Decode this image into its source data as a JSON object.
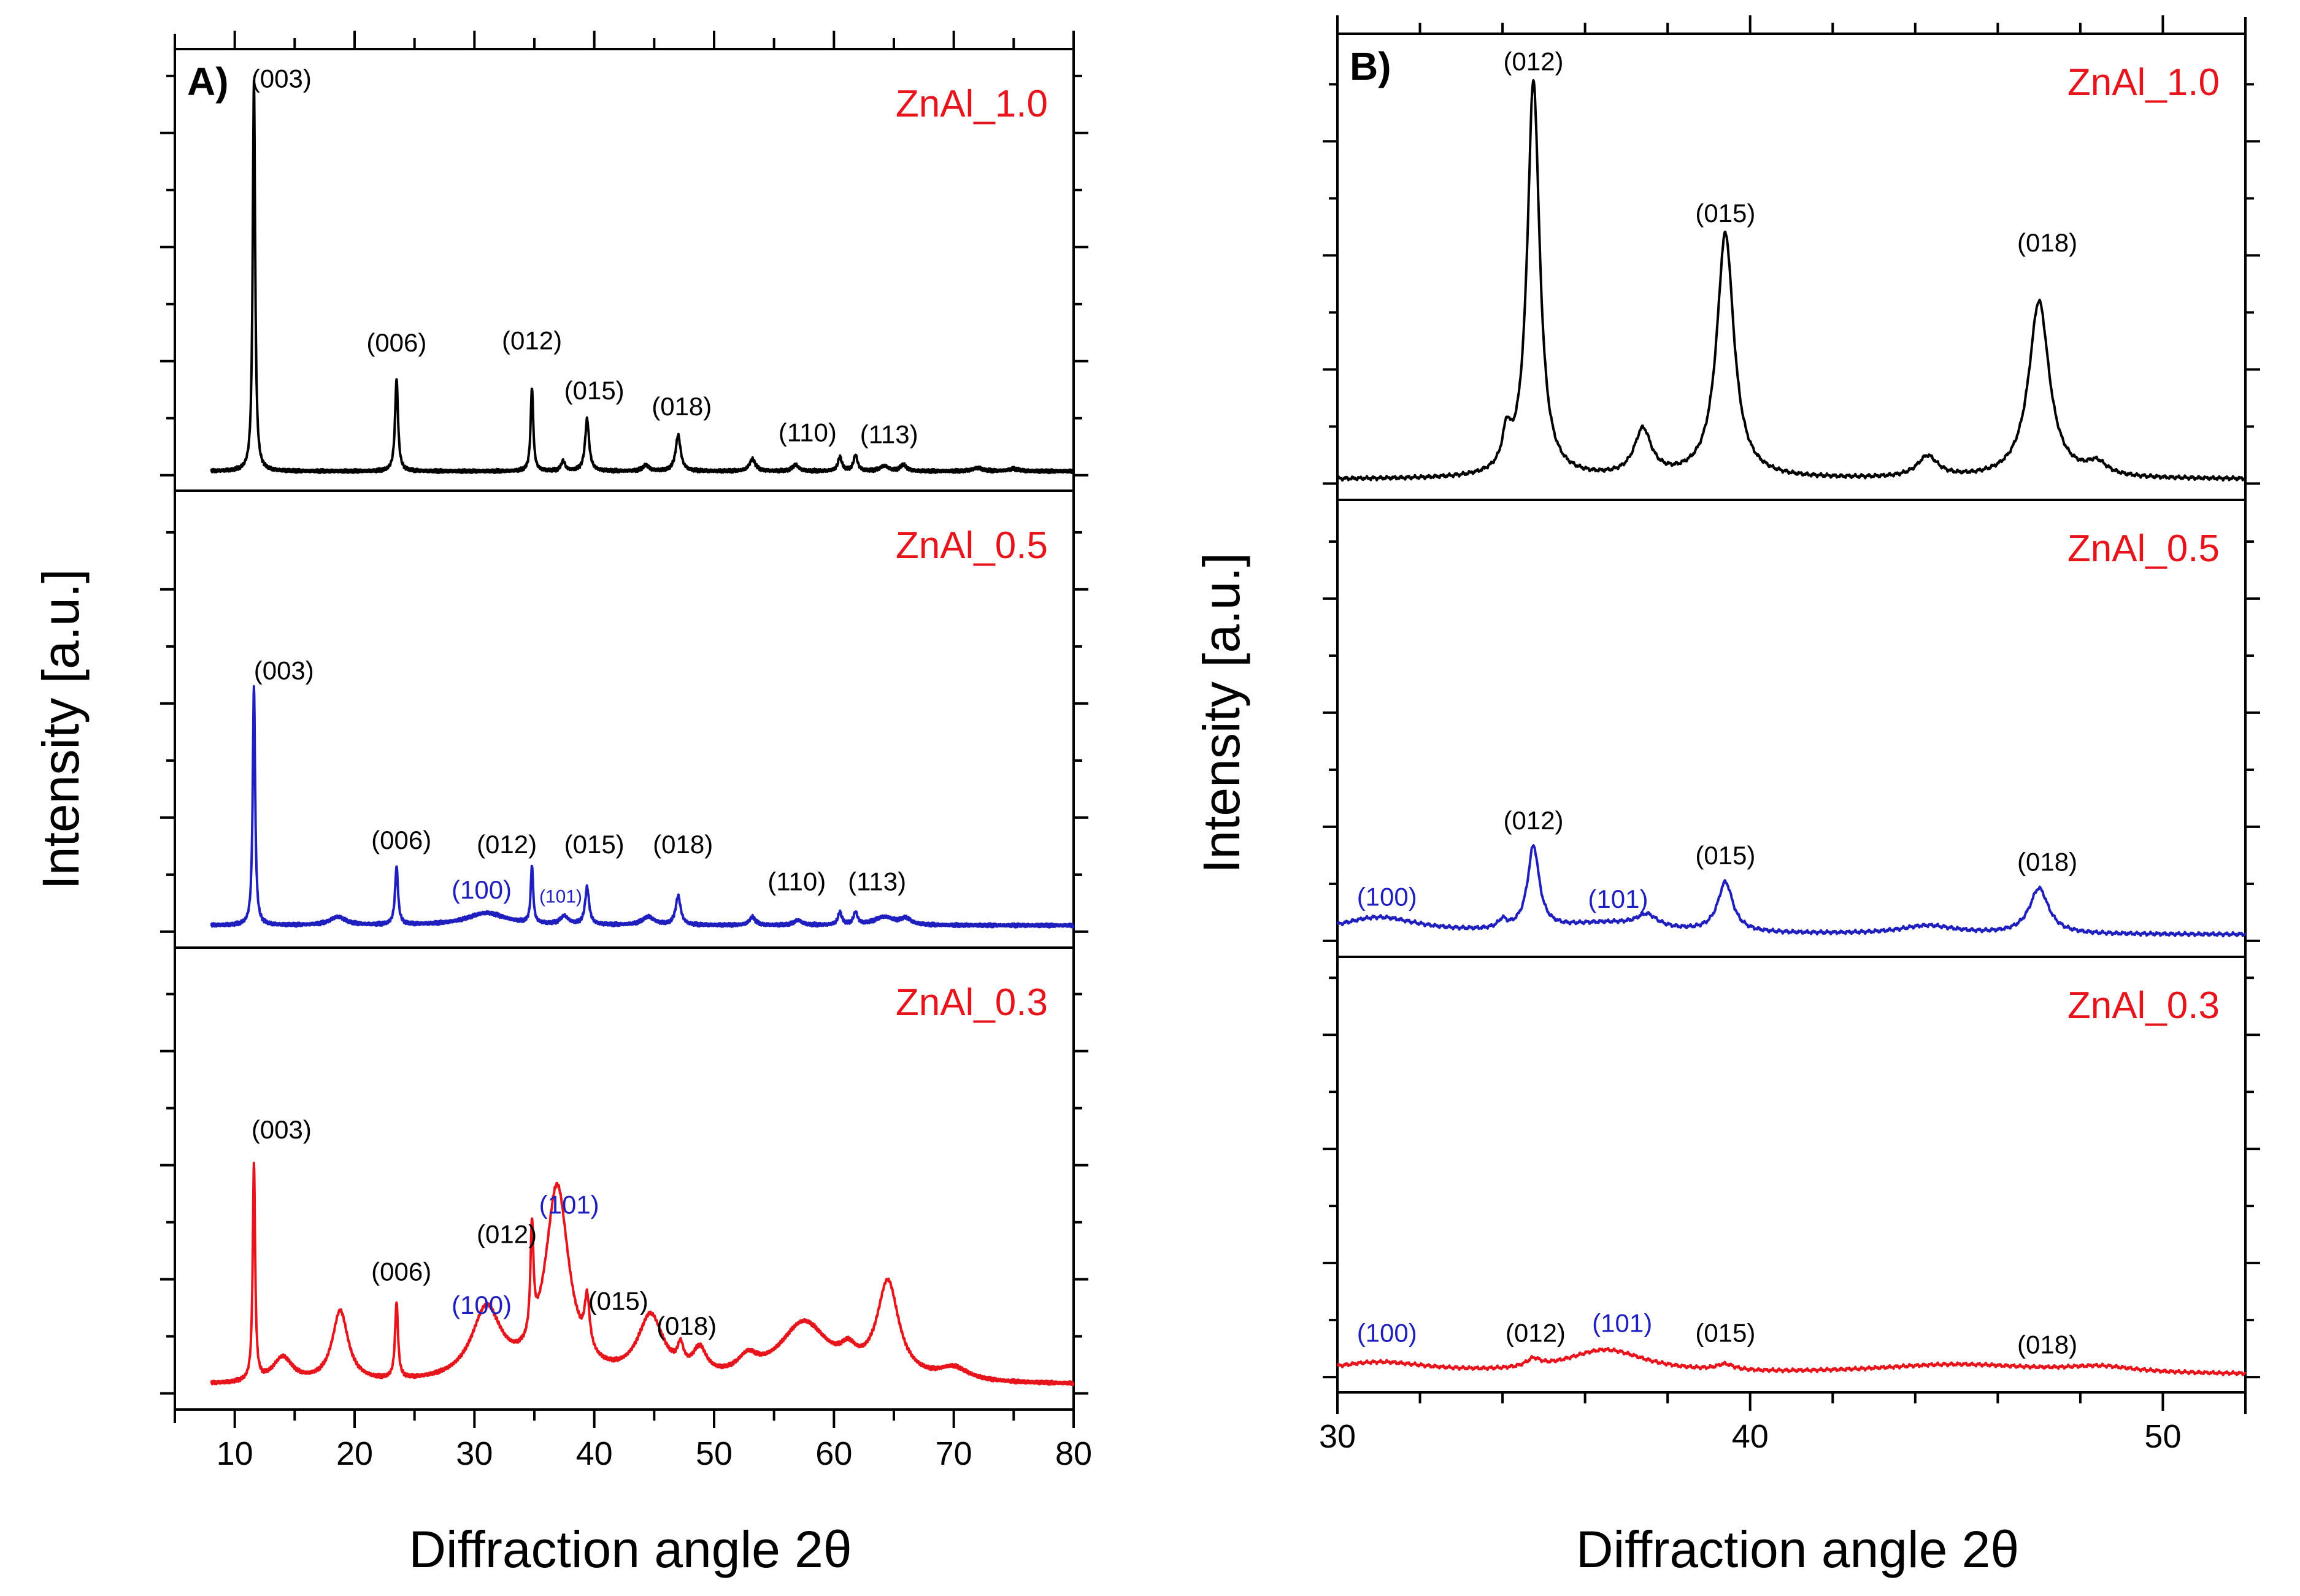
{
  "chart_data": [
    {
      "panel": "A)",
      "type": "line",
      "xlabel": "Diffraction angle 2θ",
      "ylabel": "Intensity [a.u.]",
      "xlim": [
        5,
        80
      ],
      "xticks": [
        10,
        20,
        30,
        40,
        50,
        60,
        70,
        80
      ],
      "subplots": [
        {
          "name": "ZnAl_1.0",
          "color": "#e8141b",
          "series_color": "#000000",
          "ylim": [
            0,
            100
          ],
          "baseline": 1,
          "peaks": [
            [
              11.6,
              98,
              0.12
            ],
            [
              23.5,
              23,
              0.15
            ],
            [
              34.8,
              21,
              0.13
            ],
            [
              37.4,
              2.5,
              0.2
            ],
            [
              39.4,
              13,
              0.2
            ],
            [
              44.3,
              1.5,
              0.3
            ],
            [
              47.0,
              9,
              0.25
            ],
            [
              53.2,
              3,
              0.3
            ],
            [
              56.8,
              1.6,
              0.3
            ],
            [
              60.5,
              3.5,
              0.2
            ],
            [
              61.8,
              4,
              0.2
            ],
            [
              64.2,
              1.3,
              0.4
            ],
            [
              65.8,
              1.6,
              0.3
            ],
            [
              72.0,
              0.8,
              0.5
            ],
            [
              75.0,
              0.6,
              0.5
            ]
          ],
          "labels": [
            {
              "text": "(003)",
              "x": 13.9,
              "y": 97,
              "color": "#000000"
            },
            {
              "text": "(006)",
              "x": 23.5,
              "y": 31,
              "color": "#000000"
            },
            {
              "text": "(012)",
              "x": 34.8,
              "y": 31.5,
              "color": "#000000"
            },
            {
              "text": "(015)",
              "x": 40.0,
              "y": 19,
              "color": "#000000"
            },
            {
              "text": "(018)",
              "x": 47.3,
              "y": 15,
              "color": "#000000"
            },
            {
              "text": "(110)",
              "x": 57.8,
              "y": 8.5,
              "color": "#000000"
            },
            {
              "text": "(113)",
              "x": 64.6,
              "y": 8,
              "color": "#000000"
            }
          ]
        },
        {
          "name": "ZnAl_0.5",
          "color": "#e8141b",
          "series_color": "#1f1fbf",
          "ylim": [
            0,
            100
          ],
          "baseline": 1.5,
          "peaks": [
            [
              11.6,
              58,
              0.12
            ],
            [
              18.6,
              2,
              0.8
            ],
            [
              23.5,
              14,
              0.15
            ],
            [
              31.0,
              3,
              2.0
            ],
            [
              34.8,
              14,
              0.12
            ],
            [
              37.5,
              2,
              0.4
            ],
            [
              39.4,
              9,
              0.2
            ],
            [
              44.5,
              2,
              0.6
            ],
            [
              47.0,
              7,
              0.25
            ],
            [
              53.2,
              2,
              0.3
            ],
            [
              57.0,
              1.2,
              0.4
            ],
            [
              60.5,
              3,
              0.2
            ],
            [
              61.8,
              3,
              0.2
            ],
            [
              64.2,
              2,
              1.0
            ],
            [
              66.0,
              1.5,
              0.5
            ]
          ],
          "labels": [
            {
              "text": "(003)",
              "x": 14.1,
              "y": 61,
              "color": "#000000"
            },
            {
              "text": "(006)",
              "x": 23.9,
              "y": 20,
              "color": "#000000"
            },
            {
              "text": "(012)",
              "x": 32.7,
              "y": 19,
              "color": "#000000"
            },
            {
              "text": "(100)",
              "x": 30.6,
              "y": 8,
              "color": "#1f1fbf"
            },
            {
              "text": "(015)",
              "x": 40.0,
              "y": 19,
              "color": "#000000"
            },
            {
              "text": "(101)",
              "x": 37.2,
              "y": 7,
              "color": "#1f1fbf",
              "small": true
            },
            {
              "text": "(018)",
              "x": 47.4,
              "y": 19,
              "color": "#000000"
            },
            {
              "text": "(110)",
              "x": 56.9,
              "y": 10,
              "color": "#000000"
            },
            {
              "text": "(113)",
              "x": 63.6,
              "y": 10,
              "color": "#000000"
            }
          ]
        },
        {
          "name": "ZnAl_0.3",
          "color": "#e8141b",
          "series_color": "#e8141b",
          "ylim": [
            0,
            100
          ],
          "baseline": 2,
          "peaks": [
            [
              11.6,
              52,
              0.12
            ],
            [
              14.0,
              6,
              1.0
            ],
            [
              18.8,
              17,
              0.8
            ],
            [
              23.5,
              18,
              0.15
            ],
            [
              31.0,
              17,
              1.5
            ],
            [
              34.8,
              26,
              0.15
            ],
            [
              36.9,
              46,
              1.2
            ],
            [
              39.4,
              12,
              0.25
            ],
            [
              44.7,
              15,
              1.3
            ],
            [
              47.2,
              5,
              0.3
            ],
            [
              48.8,
              6,
              0.7
            ],
            [
              52.8,
              4,
              1.0
            ],
            [
              57.5,
              14,
              2.5
            ],
            [
              61.2,
              4,
              0.8
            ],
            [
              64.5,
              23,
              1.1
            ],
            [
              70.0,
              3,
              1.5
            ]
          ],
          "labels": [
            {
              "text": "(003)",
              "x": 13.9,
              "y": 61,
              "color": "#000000"
            },
            {
              "text": "(006)",
              "x": 23.9,
              "y": 27,
              "color": "#000000"
            },
            {
              "text": "(100)",
              "x": 30.6,
              "y": 19,
              "color": "#1f1fbf"
            },
            {
              "text": "(012)",
              "x": 32.7,
              "y": 36,
              "color": "#000000"
            },
            {
              "text": "(101)",
              "x": 37.9,
              "y": 43,
              "color": "#1f1fbf"
            },
            {
              "text": "(015)",
              "x": 42.0,
              "y": 20,
              "color": "#000000"
            },
            {
              "text": "(018)",
              "x": 47.7,
              "y": 14,
              "color": "#000000"
            }
          ]
        }
      ]
    },
    {
      "panel": "B)",
      "type": "line",
      "xlabel": "Diffraction angle 2θ",
      "ylabel": "Intensity [a.u.]",
      "xlim": [
        30,
        52
      ],
      "xticks": [
        30,
        40,
        50
      ],
      "subplots": [
        {
          "name": "ZnAl_1.0",
          "color": "#e8141b",
          "series_color": "#000000",
          "ylim": [
            0,
            100
          ],
          "baseline": 1,
          "peaks": [
            [
              34.1,
              8,
              0.12
            ],
            [
              34.75,
              94,
              0.18
            ],
            [
              37.4,
              11,
              0.25
            ],
            [
              39.4,
              58,
              0.25
            ],
            [
              44.3,
              5,
              0.3
            ],
            [
              47.0,
              42,
              0.3
            ],
            [
              48.4,
              3,
              0.3
            ]
          ],
          "labels": [
            {
              "text": "(012)",
              "x": 34.75,
              "y": 98,
              "color": "#000000"
            },
            {
              "text": "(015)",
              "x": 39.4,
              "y": 62,
              "color": "#000000"
            },
            {
              "text": "(018)",
              "x": 47.2,
              "y": 55,
              "color": "#000000"
            }
          ]
        },
        {
          "name": "ZnAl_0.5",
          "color": "#e8141b",
          "series_color": "#1f1fbf",
          "ylim": [
            0,
            100
          ],
          "baseline": 1.5,
          "peaks": [
            [
              31.0,
              4,
              1.2
            ],
            [
              34.0,
              2,
              0.12
            ],
            [
              34.75,
              20,
              0.17
            ],
            [
              36.5,
              2.5,
              1.5
            ],
            [
              37.5,
              3,
              0.3
            ],
            [
              39.4,
              12,
              0.22
            ],
            [
              44.3,
              2,
              0.8
            ],
            [
              47.0,
              11,
              0.28
            ]
          ],
          "labels": [
            {
              "text": "(012)",
              "x": 34.75,
              "y": 27,
              "color": "#000000"
            },
            {
              "text": "(100)",
              "x": 31.2,
              "y": 8.5,
              "color": "#1f1fbf"
            },
            {
              "text": "(101)",
              "x": 36.8,
              "y": 8,
              "color": "#1f1fbf"
            },
            {
              "text": "(015)",
              "x": 39.4,
              "y": 18.5,
              "color": "#000000"
            },
            {
              "text": "(018)",
              "x": 47.2,
              "y": 17,
              "color": "#000000"
            }
          ]
        },
        {
          "name": "ZnAl_0.3",
          "color": "#e8141b",
          "series_color": "#e8141b",
          "ylim": [
            0,
            100
          ],
          "baseline": 0.5,
          "peaks": [
            [
              31.0,
              3,
              1.5
            ],
            [
              34.75,
              2,
              0.2
            ],
            [
              36.5,
              6,
              1.2
            ],
            [
              39.4,
              1.5,
              0.25
            ],
            [
              45.0,
              2.5,
              2.5
            ],
            [
              48.5,
              1.5,
              1.0
            ]
          ],
          "labels": [
            {
              "text": "(100)",
              "x": 31.2,
              "y": 9,
              "color": "#1f1fbf"
            },
            {
              "text": "(012)",
              "x": 34.8,
              "y": 9,
              "color": "#000000"
            },
            {
              "text": "(101)",
              "x": 36.9,
              "y": 11.5,
              "color": "#1f1fbf"
            },
            {
              "text": "(015)",
              "x": 39.4,
              "y": 9,
              "color": "#000000"
            },
            {
              "text": "(018)",
              "x": 47.2,
              "y": 6,
              "color": "#000000"
            }
          ]
        }
      ]
    }
  ]
}
